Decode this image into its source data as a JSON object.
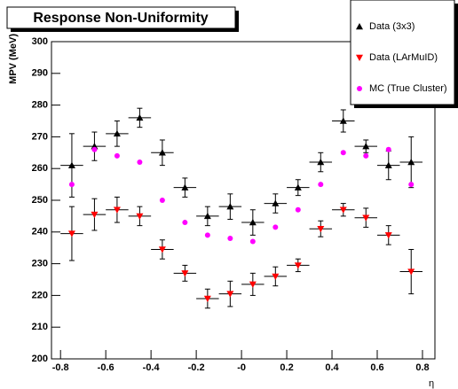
{
  "chart_data": {
    "type": "errorbar",
    "title": "Response Non-Uniformity",
    "x_label": "η",
    "y_label": "MPV (MeV)",
    "x": [
      -0.75,
      -0.65,
      -0.55,
      -0.45,
      -0.35,
      -0.25,
      -0.15,
      -0.05,
      0.05,
      0.15,
      0.25,
      0.35,
      0.45,
      0.55,
      0.65,
      0.75
    ],
    "xerr": 0.05,
    "series": [
      {
        "name": "Data (3x3)",
        "color": "#000000",
        "marker": "triangle-up",
        "values": [
          261,
          267,
          271,
          276,
          265,
          254,
          245,
          248,
          243,
          249,
          254,
          262,
          275,
          267,
          261,
          262
        ],
        "errors": [
          10,
          4.5,
          4,
          3,
          4,
          3,
          3,
          4,
          4,
          3,
          2.5,
          3,
          3.5,
          2,
          4.5,
          8
        ]
      },
      {
        "name": "Data (LArMuID)",
        "color": "#ff0000",
        "marker": "triangle-down",
        "values": [
          239.5,
          245.5,
          247,
          245,
          234.5,
          227,
          219,
          220.5,
          223.5,
          226,
          229.5,
          241,
          247,
          244.5,
          239,
          227.5
        ],
        "errors": [
          8.5,
          5,
          4,
          3,
          3,
          2.5,
          3,
          4,
          3.5,
          3,
          2,
          2.5,
          2,
          3,
          3,
          7
        ]
      },
      {
        "name": "MC (True Cluster)",
        "color": "#ff00ff",
        "marker": "circle",
        "values": [
          255,
          266,
          264,
          262,
          250,
          243,
          239,
          238,
          237,
          241.5,
          247,
          255,
          265,
          264,
          266,
          255
        ]
      }
    ],
    "xlim": [
      -0.84,
      0.855
    ],
    "ylim": [
      200,
      300
    ],
    "xticks": [
      -0.8,
      -0.6,
      -0.4,
      -0.2,
      {
        "value": 0,
        "label": "-0"
      },
      0.2,
      0.4,
      0.6,
      0.8
    ],
    "yticks": [
      200,
      210,
      220,
      230,
      240,
      250,
      260,
      270,
      280,
      290,
      300
    ],
    "legend": "top-right"
  }
}
